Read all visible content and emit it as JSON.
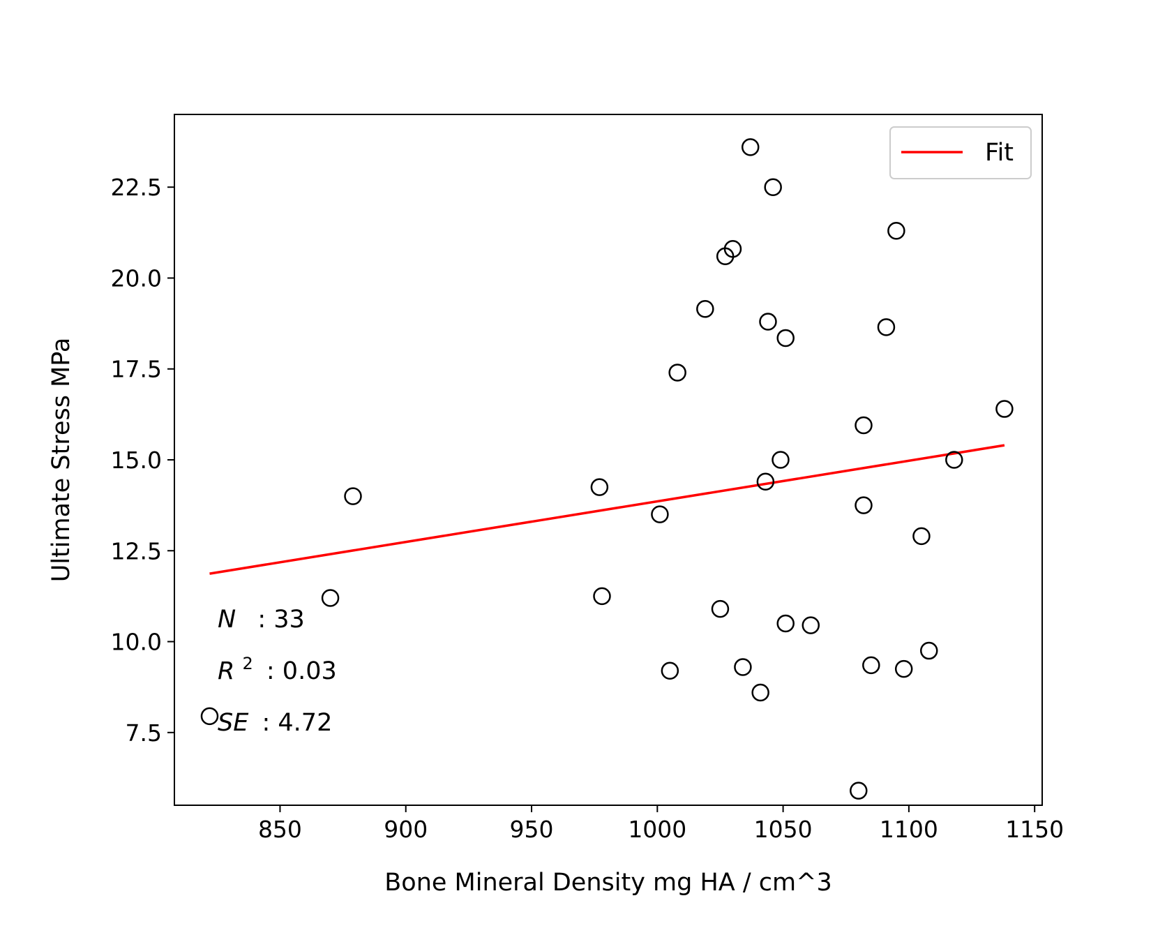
{
  "chart_data": {
    "type": "scatter",
    "title": "",
    "xlabel": "Bone Mineral Density mg HA / cm^3",
    "ylabel": "Ultimate Stress MPa",
    "xlim": [
      808,
      1153
    ],
    "ylim": [
      5.5,
      24.5
    ],
    "xticks": [
      850,
      900,
      950,
      1000,
      1050,
      1100,
      1150
    ],
    "yticks": [
      7.5,
      10.0,
      12.5,
      15.0,
      17.5,
      20.0,
      22.5
    ],
    "xtick_labels": [
      "850",
      "900",
      "950",
      "1000",
      "1050",
      "1100",
      "1150"
    ],
    "ytick_labels": [
      "7.5",
      "10.0",
      "12.5",
      "15.0",
      "17.5",
      "20.0",
      "22.5"
    ],
    "grid": false,
    "legend": {
      "placement": "top-right",
      "entries": [
        {
          "label": "Fit",
          "color": "#ff0000"
        }
      ]
    },
    "points": [
      {
        "x": 822,
        "y": 7.95
      },
      {
        "x": 870,
        "y": 11.2
      },
      {
        "x": 879,
        "y": 14.0
      },
      {
        "x": 977,
        "y": 14.25
      },
      {
        "x": 978,
        "y": 11.25
      },
      {
        "x": 1001,
        "y": 13.5
      },
      {
        "x": 1005,
        "y": 9.2
      },
      {
        "x": 1008,
        "y": 17.4
      },
      {
        "x": 1019,
        "y": 19.15
      },
      {
        "x": 1025,
        "y": 10.9
      },
      {
        "x": 1027,
        "y": 20.6
      },
      {
        "x": 1030,
        "y": 20.8
      },
      {
        "x": 1034,
        "y": 9.3
      },
      {
        "x": 1037,
        "y": 23.6
      },
      {
        "x": 1041,
        "y": 8.6
      },
      {
        "x": 1043,
        "y": 14.4
      },
      {
        "x": 1044,
        "y": 18.8
      },
      {
        "x": 1046,
        "y": 22.5
      },
      {
        "x": 1049,
        "y": 15.0
      },
      {
        "x": 1051,
        "y": 18.35
      },
      {
        "x": 1051,
        "y": 10.5
      },
      {
        "x": 1061,
        "y": 10.45
      },
      {
        "x": 1080,
        "y": 5.9
      },
      {
        "x": 1082,
        "y": 15.95
      },
      {
        "x": 1082,
        "y": 13.75
      },
      {
        "x": 1085,
        "y": 9.35
      },
      {
        "x": 1091,
        "y": 18.65
      },
      {
        "x": 1095,
        "y": 21.3
      },
      {
        "x": 1098,
        "y": 9.25
      },
      {
        "x": 1105,
        "y": 12.9
      },
      {
        "x": 1108,
        "y": 9.75
      },
      {
        "x": 1118,
        "y": 15.0
      },
      {
        "x": 1138,
        "y": 16.4
      }
    ],
    "fit": {
      "name": "Fit",
      "color": "#ff0000",
      "x": [
        822,
        1138
      ],
      "y": [
        11.87,
        15.4
      ]
    },
    "point_color": "#000000",
    "stats": {
      "n_symbol": "N",
      "n_value": ": 33",
      "r2_symbol": "R",
      "r2_sup": "2",
      "r2_value": ": 0.03",
      "se_symbol": "SE",
      "se_value": ": 4.72"
    }
  }
}
